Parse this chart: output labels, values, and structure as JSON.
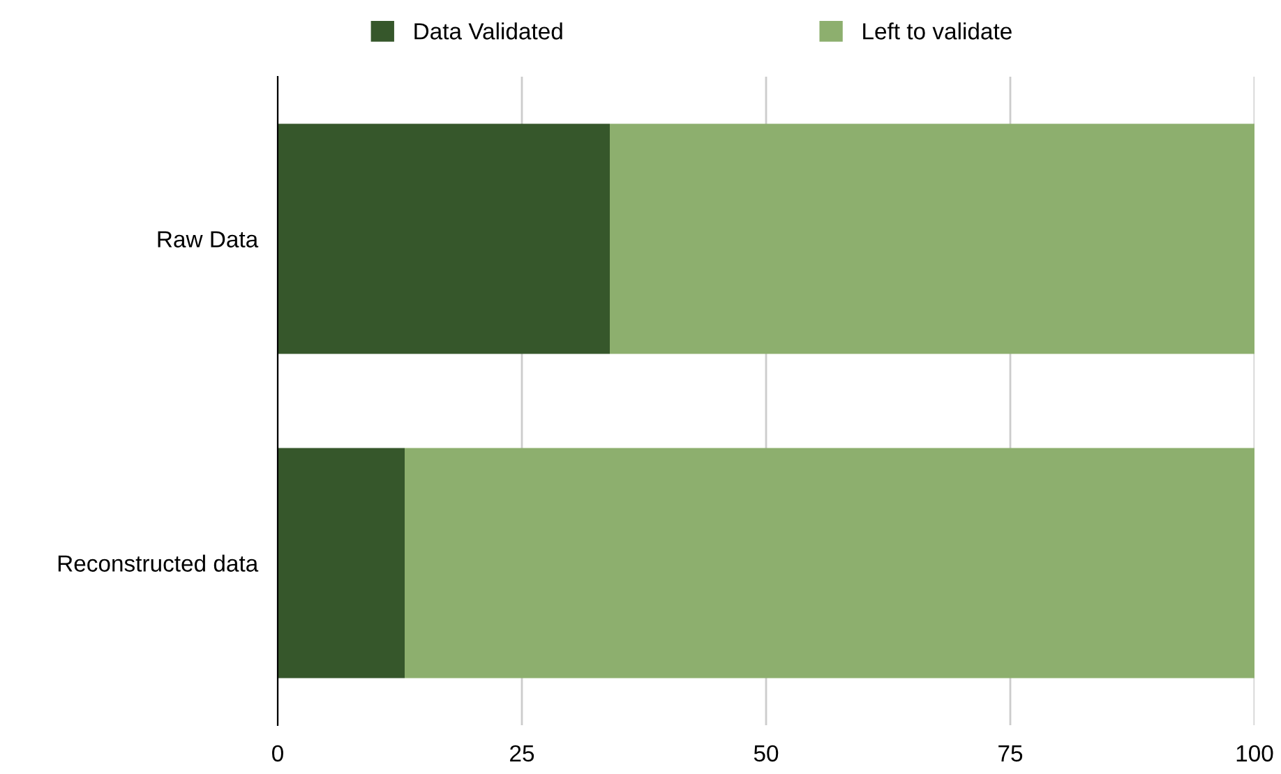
{
  "chart_data": {
    "type": "bar",
    "orientation": "horizontal",
    "stacked": true,
    "categories": [
      "Raw Data",
      "Reconstructed data"
    ],
    "series": [
      {
        "name": "Data Validated",
        "color": "#36572b",
        "values": [
          34,
          13
        ]
      },
      {
        "name": "Left to validate",
        "color": "#8daf6e",
        "values": [
          66,
          87
        ]
      }
    ],
    "xlim": [
      0,
      100
    ],
    "xticks": [
      0,
      25,
      50,
      75,
      100
    ],
    "grid": "x",
    "legend": "top"
  }
}
